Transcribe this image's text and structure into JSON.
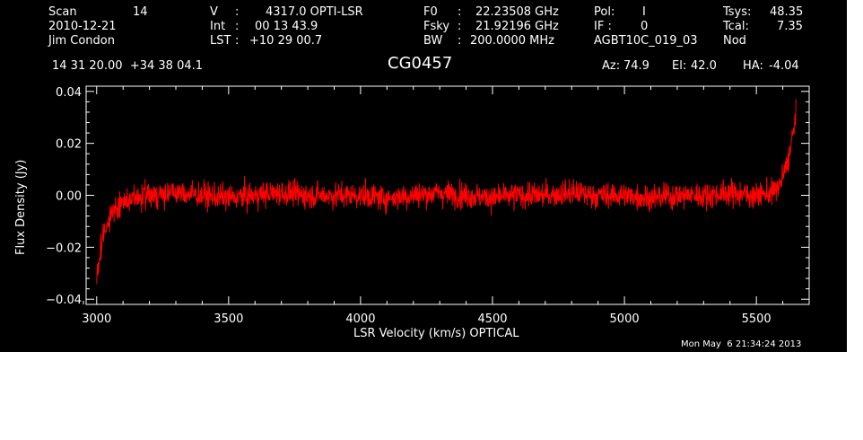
{
  "header": {
    "scan_label": "Scan",
    "scan_value": "14",
    "date": "2010-12-21",
    "observer": "Jim Condon",
    "velocity_label": "V",
    "velocity_value": "4317.0 OPTI-LSR",
    "int_label": "Int",
    "int_value": "00 13 43.9",
    "lst_label": "LST",
    "lst_value": "+10 29 00.7",
    "f0_label": "F0",
    "f0_value": "22.23508 GHz",
    "fsky_label": "Fsky",
    "fsky_value": "21.92196 GHz",
    "bw_label": "BW",
    "bw_value": "200.0000 MHz",
    "pol_label": "Pol:",
    "pol_value": "I",
    "if_label": "IF :",
    "if_value": "0",
    "project": "AGBT10C_019_03",
    "tsys_label": "Tsys:",
    "tsys_value": "48.35",
    "tcal_label": "Tcal:",
    "tcal_value": "7.35",
    "procedure": "Nod",
    "coordinates": "14 31 20.00  +34 38 04.1",
    "source": "CG0457",
    "az_label": "Az:",
    "az_value": "74.9",
    "el_label": "El:",
    "el_value": "42.0",
    "ha_label": "HA:",
    "ha_value": "-4.04"
  },
  "timestamp": "Mon May  6 21:34:24 2013",
  "chart_data": {
    "type": "line",
    "xlabel": "LSR Velocity (km/s) OPTICAL",
    "ylabel": "Flux Density (Jy)",
    "xlim": [
      2960,
      5700
    ],
    "ylim": [
      -0.042,
      0.042
    ],
    "x_ticks": [
      3000,
      3500,
      4000,
      4500,
      5000,
      5500
    ],
    "y_ticks": [
      -0.04,
      -0.02,
      0.0,
      0.02,
      0.04
    ],
    "y_tick_labels": [
      "−0.04",
      "−0.02",
      "0.00",
      "0.02",
      "0.04"
    ],
    "series": [
      {
        "color": "#ff0000",
        "x": [
          3000,
          3010,
          3020,
          3035,
          3050,
          3075,
          3100,
          3150,
          3200,
          3300,
          3400,
          3500,
          3600,
          3700,
          3800,
          3900,
          4000,
          4100,
          4200,
          4300,
          4400,
          4500,
          4600,
          4700,
          4800,
          4900,
          5000,
          5100,
          5200,
          5300,
          5400,
          5500,
          5560,
          5590,
          5610,
          5625,
          5640,
          5650
        ],
        "y": [
          -0.031,
          -0.024,
          -0.018,
          -0.012,
          -0.008,
          -0.005,
          -0.003,
          -0.001,
          0.0,
          0.001,
          0.0,
          -0.001,
          0.0,
          0.001,
          0.0,
          0.0,
          0.0,
          -0.001,
          0.0,
          0.001,
          0.0,
          -0.001,
          0.0,
          0.0,
          0.001,
          0.0,
          0.0,
          -0.001,
          0.0,
          0.0,
          0.001,
          0.0,
          0.001,
          0.004,
          0.01,
          0.016,
          0.024,
          0.033
        ],
        "noise_rms": 0.0035
      }
    ]
  }
}
